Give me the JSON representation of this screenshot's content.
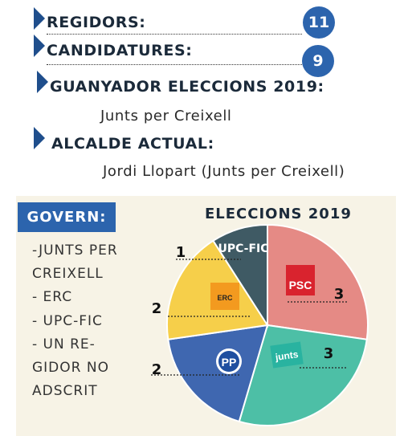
{
  "stats": {
    "regidors_label": "REGIDORS:",
    "regidors_value": "11",
    "candidatures_label": "CANDIDATURES:",
    "candidatures_value": "9",
    "guanyador_label": "GUANYADOR ELECCIONS 2019:",
    "guanyador_value": "Junts per Creixell",
    "alcalde_label": "ALCALDE ACTUAL:",
    "alcalde_value": "Jordi Llopart (Junts per Creixell)"
  },
  "govern": {
    "title": "GOVERN:",
    "lines": [
      "-JUNTS PER",
      "CREIXELL",
      "- ERC",
      "- UPC-FIC",
      "- UN RE-",
      "GIDOR NO",
      "ADSCRIT"
    ]
  },
  "chart_data": {
    "type": "pie",
    "title": "ELECCIONS 2019",
    "series": [
      {
        "name": "PSC",
        "value": 3,
        "color": "#e58a85"
      },
      {
        "name": "Junts",
        "value": 3,
        "color": "#4dbfa6"
      },
      {
        "name": "PP",
        "value": 2,
        "color": "#3f67b0"
      },
      {
        "name": "ERC",
        "value": 2,
        "color": "#f6cf4a"
      },
      {
        "name": "UPC-FIC",
        "value": 1,
        "color": "#3f5a64"
      }
    ],
    "logos": {
      "psc": "PSC",
      "junts": "junts",
      "pp": "PP",
      "erc": "ERC",
      "upc": "UPC-FIC"
    }
  }
}
